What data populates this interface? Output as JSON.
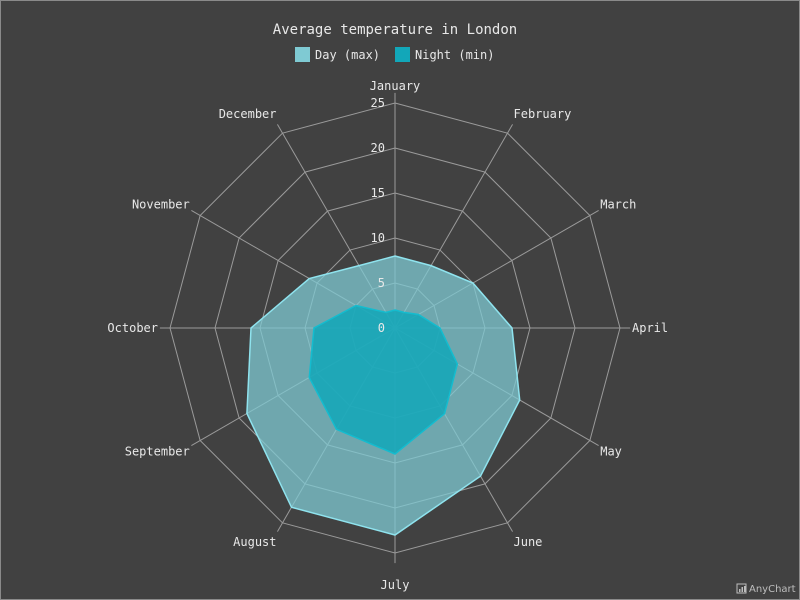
{
  "chart_data": {
    "type": "radar",
    "title": "Average temperature in London",
    "categories": [
      "January",
      "February",
      "March",
      "April",
      "May",
      "June",
      "July",
      "August",
      "September",
      "October",
      "November",
      "December"
    ],
    "series": [
      {
        "name": "Day (max)",
        "color": "#7fcad3",
        "values": [
          8,
          8,
          10,
          13,
          16,
          19,
          23,
          23,
          19,
          16,
          11,
          8
        ]
      },
      {
        "name": "Night (min)",
        "color": "#12a7b9",
        "values": [
          2,
          2,
          3,
          5,
          8,
          11,
          14,
          13,
          11,
          9,
          5,
          2
        ]
      }
    ],
    "yticks": [
      0,
      5,
      10,
      15,
      20,
      25
    ],
    "ylim": [
      0,
      25
    ],
    "grid": true,
    "legend_position": "top"
  },
  "credit": {
    "text": "AnyChart",
    "icon": "bar-chart-icon"
  }
}
